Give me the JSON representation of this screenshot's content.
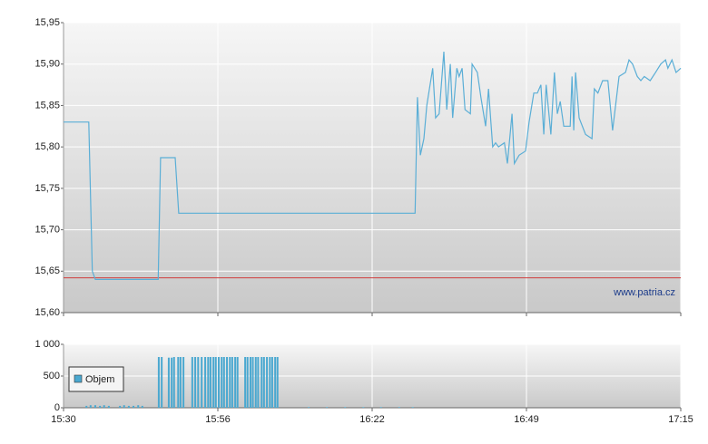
{
  "chart_data": [
    {
      "type": "line",
      "color": "#5aaed6",
      "xlim": [
        930,
        1035
      ],
      "ylim": [
        15.6,
        15.95
      ],
      "yticks": [
        {
          "value": 15.6,
          "label": "15,60"
        },
        {
          "value": 15.65,
          "label": "15,65"
        },
        {
          "value": 15.7,
          "label": "15,70"
        },
        {
          "value": 15.75,
          "label": "15,75"
        },
        {
          "value": 15.8,
          "label": "15,80"
        },
        {
          "value": 15.85,
          "label": "15,85"
        },
        {
          "value": 15.9,
          "label": "15,90"
        },
        {
          "value": 15.95,
          "label": "15,95"
        }
      ],
      "grid": true,
      "reference_line": {
        "value": 15.642,
        "color": "#d03c3c"
      },
      "annotation": "www.patria.cz",
      "x": [
        930.0,
        934.3,
        934.9,
        935.4,
        946.1,
        946.5,
        949.0,
        949.6,
        989.8,
        990.2,
        990.7,
        991.3,
        991.8,
        992.8,
        993.3,
        993.9,
        994.7,
        995.2,
        995.8,
        996.2,
        996.9,
        997.3,
        997.8,
        998.3,
        999.2,
        999.5,
        1000.4,
        1001.0,
        1001.8,
        1002.3,
        1002.7,
        1003.0,
        1003.5,
        1004.0,
        1005.0,
        1005.5,
        1006.3,
        1006.7,
        1007.5,
        1008.6,
        1009.2,
        1010.0,
        1010.6,
        1011.2,
        1011.7,
        1012.1,
        1012.9,
        1013.5,
        1014.0,
        1014.5,
        1015.1,
        1016.2,
        1016.5,
        1016.8,
        1017.1,
        1017.7,
        1018.8,
        1019.9,
        1020.3,
        1020.9,
        1021.7,
        1022.6,
        1023.4,
        1024.5,
        1025.6,
        1026.2,
        1026.8,
        1027.6,
        1028.2,
        1028.8,
        1029.8,
        1030.7,
        1031.6,
        1032.4,
        1032.8,
        1033.5,
        1034.2,
        1035.0
      ],
      "values": [
        15.83,
        15.83,
        15.65,
        15.64,
        15.64,
        15.787,
        15.787,
        15.72,
        15.72,
        15.86,
        15.79,
        15.81,
        15.85,
        15.895,
        15.835,
        15.84,
        15.915,
        15.845,
        15.9,
        15.835,
        15.895,
        15.885,
        15.895,
        15.845,
        15.84,
        15.9,
        15.89,
        15.86,
        15.825,
        15.87,
        15.83,
        15.8,
        15.805,
        15.8,
        15.805,
        15.78,
        15.84,
        15.78,
        15.79,
        15.795,
        15.83,
        15.865,
        15.865,
        15.875,
        15.815,
        15.875,
        15.815,
        15.89,
        15.84,
        15.855,
        15.825,
        15.825,
        15.885,
        15.82,
        15.89,
        15.835,
        15.815,
        15.81,
        15.87,
        15.865,
        15.88,
        15.88,
        15.82,
        15.885,
        15.89,
        15.905,
        15.9,
        15.885,
        15.88,
        15.885,
        15.88,
        15.89,
        15.9,
        15.905,
        15.895,
        15.905,
        15.89,
        15.895
      ]
    },
    {
      "type": "bar",
      "xlim": [
        930,
        1035
      ],
      "ylim": [
        0,
        1000
      ],
      "yticks": [
        0,
        500,
        {
          "value": 1000,
          "label": "1 000"
        }
      ],
      "xticks": [
        {
          "value": 930,
          "label": "15:30"
        },
        {
          "value": 956.25,
          "label": "15:56"
        },
        {
          "value": 982.5,
          "label": "16:22"
        },
        {
          "value": 1008.75,
          "label": "16:49"
        },
        {
          "value": 1035,
          "label": "17:15"
        }
      ],
      "grid": true,
      "legend": "top-left",
      "x": [
        933.9,
        934.6,
        935.4,
        936.2,
        936.9,
        937.7,
        939.6,
        940.3,
        941.1,
        941.9,
        942.7,
        943.4,
        946.2,
        946.7,
        947.9,
        948.4,
        948.8,
        949.5,
        949.9,
        950.4,
        951.9,
        952.4,
        952.9,
        953.5,
        954.1,
        954.6,
        955.0,
        955.5,
        955.9,
        956.4,
        956.9,
        957.3,
        957.8,
        958.3,
        958.7,
        959.2,
        959.6,
        960.9,
        961.3,
        961.8,
        962.2,
        962.7,
        963.1,
        963.7,
        964.1,
        964.6,
        965.1,
        965.5,
        966.0,
        966.4,
        971.7,
        974.8,
        977.9,
        981.0,
        984.0,
        987.1,
        989.4
      ],
      "series": [
        {
          "name": "Objem",
          "color": "#4aa8d0",
          "values": [
            30,
            40,
            40,
            30,
            40,
            30,
            30,
            40,
            30,
            30,
            40,
            30,
            800,
            800,
            790,
            790,
            800,
            800,
            800,
            800,
            800,
            800,
            800,
            800,
            800,
            800,
            800,
            800,
            800,
            800,
            800,
            800,
            800,
            800,
            800,
            800,
            800,
            800,
            800,
            800,
            800,
            800,
            800,
            800,
            800,
            800,
            800,
            800,
            800,
            800,
            10,
            10,
            10,
            10,
            10,
            10,
            10
          ]
        }
      ]
    }
  ]
}
